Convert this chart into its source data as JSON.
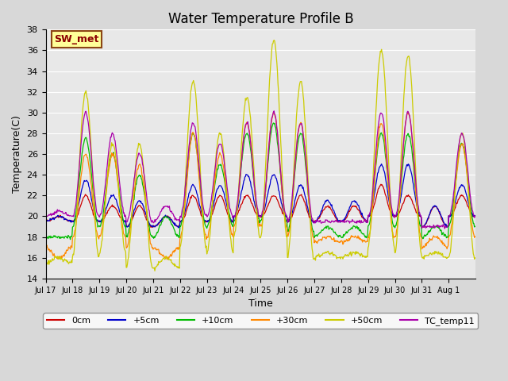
{
  "title": "Water Temperature Profile B",
  "xlabel": "Time",
  "ylabel": "Temperature(C)",
  "ylim": [
    14,
    38
  ],
  "yticks": [
    14,
    16,
    18,
    20,
    22,
    24,
    26,
    28,
    30,
    32,
    34,
    36,
    38
  ],
  "legend_label": "SW_met",
  "legend_box_color": "#ffff99",
  "legend_box_border": "#8B4513",
  "legend_text_color": "#8B0000",
  "series": {
    "0cm": {
      "color": "#cc0000"
    },
    "+5cm": {
      "color": "#0000cc"
    },
    "+10cm": {
      "color": "#00bb00"
    },
    "+30cm": {
      "color": "#ff8800"
    },
    "+50cm": {
      "color": "#cccc00"
    },
    "TC_temp11": {
      "color": "#aa00aa"
    }
  },
  "xtick_labels": [
    "Jul 17",
    "Jul 18",
    "Jul 19",
    "Jul 20",
    "Jul 21",
    "Jul 22",
    "Jul 23",
    "Jul 24",
    "Jul 25",
    "Jul 26",
    "Jul 27",
    "Jul 28",
    "Jul 29",
    "Jul 30",
    "Jul 31",
    "Aug 1"
  ],
  "num_days": 16,
  "samples_per_day": 48,
  "peaks_50": [
    16,
    32,
    27,
    27,
    16,
    33,
    28,
    31.5,
    37,
    33,
    16.5,
    16.5,
    36,
    35.5,
    16.5,
    28
  ],
  "peaks_30": [
    16,
    26,
    26,
    25,
    16,
    28,
    26,
    29,
    30,
    29,
    18,
    18,
    29,
    30,
    18,
    27
  ],
  "peaks_10": [
    18,
    27.5,
    26,
    24,
    20,
    28,
    25,
    28,
    29,
    28,
    19,
    19,
    28,
    28,
    19,
    27
  ],
  "peaks_tc": [
    20.5,
    30,
    28,
    26,
    21,
    29,
    27,
    29,
    30,
    29,
    19.5,
    19.5,
    30,
    30,
    19,
    28
  ],
  "peaks_0": [
    20,
    22,
    21,
    21,
    20,
    22,
    22,
    22,
    22,
    22,
    21,
    21,
    23,
    22,
    21,
    22
  ],
  "peaks_5": [
    20,
    23.5,
    22,
    21.5,
    20,
    23,
    23,
    24,
    24,
    23,
    21.5,
    21.5,
    25,
    25,
    21,
    23
  ],
  "mins_50": [
    15.5,
    16,
    16.5,
    15,
    15,
    17,
    16.5,
    18,
    18,
    16,
    16,
    16,
    17,
    16.5,
    16,
    16
  ],
  "mins_30": [
    17,
    18,
    18,
    17,
    17,
    18,
    18,
    19,
    19,
    18,
    17.5,
    17.5,
    18,
    18,
    17,
    18
  ],
  "mins_10": [
    18,
    19,
    19,
    18,
    18,
    19,
    19,
    19.5,
    19.5,
    18.5,
    18,
    18,
    19,
    19,
    18,
    19
  ],
  "mins_tc": [
    20,
    20,
    20,
    19.5,
    19.5,
    20,
    20,
    20,
    20,
    19.5,
    19.5,
    19.5,
    20,
    20,
    19,
    20
  ],
  "mins_0": [
    19.5,
    19.5,
    19.5,
    19,
    19,
    19.5,
    19.5,
    20,
    20,
    19.5,
    19.5,
    19.5,
    20,
    20,
    19,
    20
  ],
  "mins_5": [
    19.5,
    19.5,
    19.5,
    19,
    19,
    19.5,
    19.5,
    20,
    20,
    19.5,
    19.5,
    19.5,
    20,
    20,
    19,
    20
  ]
}
